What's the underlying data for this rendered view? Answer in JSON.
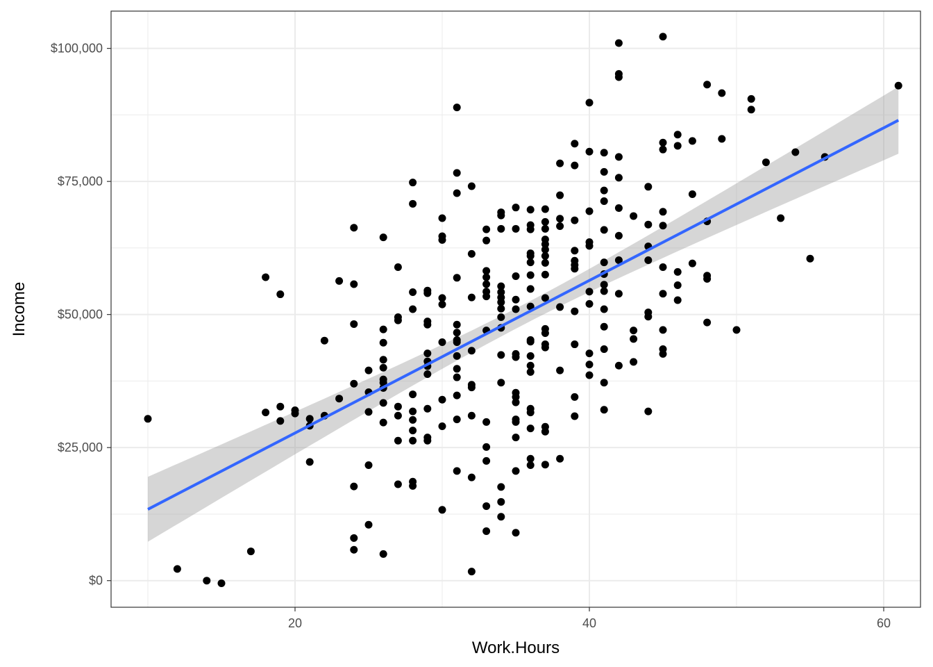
{
  "chart_data": {
    "type": "scatter",
    "title": "",
    "xlabel": "Work.Hours",
    "ylabel": "Income",
    "xlim": [
      7.5,
      62.5
    ],
    "ylim": [
      -5000,
      107000
    ],
    "x_ticks": [
      20,
      40,
      60
    ],
    "x_tick_labels": [
      "20",
      "40",
      "60"
    ],
    "y_ticks": [
      0,
      25000,
      50000,
      75000,
      100000
    ],
    "y_tick_labels": [
      "$0",
      "$25,000",
      "$50,000",
      "$75,000",
      "$100,000"
    ],
    "grid": true,
    "theme": "bw",
    "colors": {
      "points": "#000000",
      "fit_line": "#3366FF",
      "confidence_band": "#999999",
      "grid": "#EBEBEB",
      "panel_border": "#333333"
    },
    "fit": {
      "method": "linear",
      "x": [
        10,
        61
      ],
      "y": [
        13400,
        86500
      ],
      "ci_lower": [
        7300,
        80200
      ],
      "ci_upper": [
        19500,
        92800
      ],
      "ci_mid": [
        35.5,
        49900,
        48000,
        51800
      ]
    },
    "points": [
      [
        10,
        30400
      ],
      [
        12,
        2200
      ],
      [
        14,
        0
      ],
      [
        15,
        -500
      ],
      [
        17,
        5500
      ],
      [
        18,
        57000
      ],
      [
        18,
        31600
      ],
      [
        19,
        53800
      ],
      [
        19,
        32700
      ],
      [
        19,
        30000
      ],
      [
        20,
        32000
      ],
      [
        20,
        31400
      ],
      [
        21,
        30400
      ],
      [
        21,
        29100
      ],
      [
        21,
        22300
      ],
      [
        22,
        45100
      ],
      [
        22,
        31000
      ],
      [
        23,
        56300
      ],
      [
        23,
        34200
      ],
      [
        24,
        66300
      ],
      [
        24,
        55700
      ],
      [
        24,
        48200
      ],
      [
        24,
        37000
      ],
      [
        24,
        17700
      ],
      [
        24,
        8000
      ],
      [
        24,
        5800
      ],
      [
        25,
        39500
      ],
      [
        25,
        35400
      ],
      [
        25,
        31700
      ],
      [
        25,
        21700
      ],
      [
        25,
        10500
      ],
      [
        26,
        64500
      ],
      [
        26,
        47200
      ],
      [
        26,
        44700
      ],
      [
        26,
        41500
      ],
      [
        26,
        40000
      ],
      [
        26,
        37800
      ],
      [
        26,
        37200
      ],
      [
        26,
        36200
      ],
      [
        26,
        33400
      ],
      [
        26,
        29700
      ],
      [
        26,
        5000
      ],
      [
        27,
        58900
      ],
      [
        27,
        49500
      ],
      [
        27,
        48900
      ],
      [
        27,
        32700
      ],
      [
        27,
        31000
      ],
      [
        27,
        26300
      ],
      [
        27,
        18100
      ],
      [
        28,
        74800
      ],
      [
        28,
        70800
      ],
      [
        28,
        54200
      ],
      [
        28,
        51000
      ],
      [
        28,
        35000
      ],
      [
        28,
        31800
      ],
      [
        28,
        30200
      ],
      [
        28,
        28200
      ],
      [
        28,
        26300
      ],
      [
        28,
        18600
      ],
      [
        28,
        17800
      ],
      [
        29,
        54500
      ],
      [
        29,
        54000
      ],
      [
        29,
        48700
      ],
      [
        29,
        48100
      ],
      [
        29,
        42700
      ],
      [
        29,
        41200
      ],
      [
        29,
        40300
      ],
      [
        29,
        38800
      ],
      [
        29,
        32300
      ],
      [
        29,
        26900
      ],
      [
        29,
        26300
      ],
      [
        30,
        68100
      ],
      [
        30,
        64700
      ],
      [
        30,
        64000
      ],
      [
        30,
        53100
      ],
      [
        30,
        51900
      ],
      [
        30,
        44800
      ],
      [
        30,
        34000
      ],
      [
        30,
        29000
      ],
      [
        30,
        13300
      ],
      [
        31,
        88900
      ],
      [
        31,
        76600
      ],
      [
        31,
        72800
      ],
      [
        31,
        56900
      ],
      [
        31,
        48100
      ],
      [
        31,
        46600
      ],
      [
        31,
        45200
      ],
      [
        31,
        44800
      ],
      [
        31,
        42200
      ],
      [
        31,
        39800
      ],
      [
        31,
        38200
      ],
      [
        31,
        34800
      ],
      [
        31,
        30300
      ],
      [
        31,
        20600
      ],
      [
        32,
        74100
      ],
      [
        32,
        61400
      ],
      [
        32,
        53200
      ],
      [
        32,
        43200
      ],
      [
        32,
        36800
      ],
      [
        32,
        36300
      ],
      [
        32,
        31000
      ],
      [
        32,
        19400
      ],
      [
        32,
        1700
      ],
      [
        33,
        66000
      ],
      [
        33,
        63900
      ],
      [
        33,
        58200
      ],
      [
        33,
        57000
      ],
      [
        33,
        55700
      ],
      [
        33,
        54300
      ],
      [
        33,
        53400
      ],
      [
        33,
        47000
      ],
      [
        33,
        29800
      ],
      [
        33,
        25100
      ],
      [
        33,
        22500
      ],
      [
        33,
        14000
      ],
      [
        33,
        9300
      ],
      [
        34,
        69200
      ],
      [
        34,
        68600
      ],
      [
        34,
        66100
      ],
      [
        34,
        55300
      ],
      [
        34,
        54200
      ],
      [
        34,
        53200
      ],
      [
        34,
        52300
      ],
      [
        34,
        51100
      ],
      [
        34,
        49500
      ],
      [
        34,
        47500
      ],
      [
        34,
        42400
      ],
      [
        34,
        37200
      ],
      [
        34,
        17600
      ],
      [
        34,
        14800
      ],
      [
        34,
        12000
      ],
      [
        35,
        70100
      ],
      [
        35,
        66100
      ],
      [
        35,
        57200
      ],
      [
        35,
        52800
      ],
      [
        35,
        51000
      ],
      [
        35,
        42600
      ],
      [
        35,
        42000
      ],
      [
        35,
        35300
      ],
      [
        35,
        34500
      ],
      [
        35,
        33500
      ],
      [
        35,
        30300
      ],
      [
        35,
        29800
      ],
      [
        35,
        26900
      ],
      [
        35,
        20600
      ],
      [
        35,
        9000
      ],
      [
        36,
        69700
      ],
      [
        36,
        66800
      ],
      [
        36,
        66000
      ],
      [
        36,
        61500
      ],
      [
        36,
        61000
      ],
      [
        36,
        59800
      ],
      [
        36,
        57400
      ],
      [
        36,
        54800
      ],
      [
        36,
        51500
      ],
      [
        36,
        45200
      ],
      [
        36,
        44900
      ],
      [
        36,
        42200
      ],
      [
        36,
        40400
      ],
      [
        36,
        39200
      ],
      [
        36,
        32300
      ],
      [
        36,
        31600
      ],
      [
        36,
        28600
      ],
      [
        36,
        22900
      ],
      [
        36,
        21700
      ],
      [
        37,
        69800
      ],
      [
        37,
        67400
      ],
      [
        37,
        66100
      ],
      [
        37,
        64100
      ],
      [
        37,
        63200
      ],
      [
        37,
        62200
      ],
      [
        37,
        61000
      ],
      [
        37,
        59700
      ],
      [
        37,
        57500
      ],
      [
        37,
        53100
      ],
      [
        37,
        47300
      ],
      [
        37,
        46500
      ],
      [
        37,
        44400
      ],
      [
        37,
        43800
      ],
      [
        37,
        28900
      ],
      [
        37,
        28000
      ],
      [
        37,
        21800
      ],
      [
        38,
        78400
      ],
      [
        38,
        72400
      ],
      [
        38,
        68000
      ],
      [
        38,
        66600
      ],
      [
        38,
        51400
      ],
      [
        38,
        39500
      ],
      [
        38,
        22900
      ],
      [
        39,
        82100
      ],
      [
        39,
        78000
      ],
      [
        39,
        67700
      ],
      [
        39,
        62000
      ],
      [
        39,
        60100
      ],
      [
        39,
        59300
      ],
      [
        39,
        58600
      ],
      [
        39,
        50600
      ],
      [
        39,
        44400
      ],
      [
        39,
        34500
      ],
      [
        39,
        30900
      ],
      [
        40,
        89800
      ],
      [
        40,
        80600
      ],
      [
        40,
        69400
      ],
      [
        40,
        63600
      ],
      [
        40,
        62900
      ],
      [
        40,
        54300
      ],
      [
        40,
        52000
      ],
      [
        40,
        42700
      ],
      [
        40,
        40600
      ],
      [
        40,
        38600
      ],
      [
        41,
        80400
      ],
      [
        41,
        76800
      ],
      [
        41,
        73300
      ],
      [
        41,
        71300
      ],
      [
        41,
        65900
      ],
      [
        41,
        59800
      ],
      [
        41,
        57600
      ],
      [
        41,
        55600
      ],
      [
        41,
        54400
      ],
      [
        41,
        51000
      ],
      [
        41,
        47700
      ],
      [
        41,
        43500
      ],
      [
        41,
        37200
      ],
      [
        41,
        32100
      ],
      [
        42,
        101000
      ],
      [
        42,
        95200
      ],
      [
        42,
        94600
      ],
      [
        42,
        79600
      ],
      [
        42,
        75700
      ],
      [
        42,
        70000
      ],
      [
        42,
        64800
      ],
      [
        42,
        60200
      ],
      [
        42,
        53900
      ],
      [
        42,
        40400
      ],
      [
        43,
        68500
      ],
      [
        43,
        47000
      ],
      [
        43,
        45400
      ],
      [
        43,
        41100
      ],
      [
        44,
        74000
      ],
      [
        44,
        66900
      ],
      [
        44,
        62800
      ],
      [
        44,
        60200
      ],
      [
        44,
        50400
      ],
      [
        44,
        49600
      ],
      [
        44,
        31800
      ],
      [
        45,
        102200
      ],
      [
        45,
        82300
      ],
      [
        45,
        81000
      ],
      [
        45,
        69300
      ],
      [
        45,
        66700
      ],
      [
        45,
        58900
      ],
      [
        45,
        53900
      ],
      [
        45,
        47100
      ],
      [
        45,
        43500
      ],
      [
        45,
        42600
      ],
      [
        46,
        83800
      ],
      [
        46,
        81700
      ],
      [
        46,
        58000
      ],
      [
        46,
        55500
      ],
      [
        46,
        52700
      ],
      [
        47,
        82600
      ],
      [
        47,
        72600
      ],
      [
        47,
        59600
      ],
      [
        48,
        93200
      ],
      [
        48,
        67500
      ],
      [
        48,
        57300
      ],
      [
        48,
        56700
      ],
      [
        48,
        48500
      ],
      [
        49,
        91600
      ],
      [
        49,
        83000
      ],
      [
        50,
        47100
      ],
      [
        51,
        90500
      ],
      [
        51,
        88500
      ],
      [
        52,
        78600
      ],
      [
        53,
        68100
      ],
      [
        54,
        80500
      ],
      [
        55,
        60500
      ],
      [
        56,
        79600
      ],
      [
        61,
        93000
      ]
    ]
  }
}
